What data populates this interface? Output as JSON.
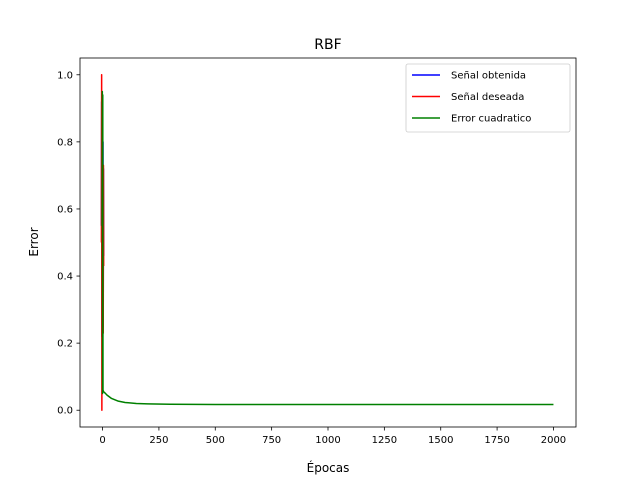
{
  "chart_data": {
    "type": "line",
    "title": "RBF",
    "xlabel": "Épocas",
    "ylabel": "Error",
    "xlim": [
      -100,
      2100
    ],
    "ylim": [
      -0.05,
      1.05
    ],
    "xticks": [
      0,
      250,
      500,
      750,
      1000,
      1250,
      1500,
      1750,
      2000
    ],
    "yticks": [
      0.0,
      0.2,
      0.4,
      0.6,
      0.8,
      1.0
    ],
    "xtick_labels": [
      "0",
      "250",
      "500",
      "750",
      "1000",
      "1250",
      "1500",
      "1750",
      "2000"
    ],
    "ytick_labels": [
      "0.0",
      "0.2",
      "0.4",
      "0.6",
      "0.8",
      "1.0"
    ],
    "grid": false,
    "legend_position": "top-right",
    "series": [
      {
        "name": "Señal obtenida",
        "color": "#0000ff",
        "x": [
          -5,
          -4,
          -3,
          -2,
          -1,
          0,
          1,
          2,
          3,
          4,
          5
        ],
        "y": [
          0.55,
          0.92,
          0.22,
          0.78,
          0.35,
          0.68,
          0.44,
          0.8,
          0.25,
          0.72,
          0.46
        ]
      },
      {
        "name": "Señal deseada",
        "color": "#ff0000",
        "x": [
          -5,
          -4,
          -3,
          -2,
          -1,
          0,
          1,
          2,
          3,
          4,
          5
        ],
        "y": [
          0.5,
          1.0,
          0.0,
          0.8,
          0.3,
          0.75,
          0.5,
          0.7,
          0.23,
          0.73,
          0.43
        ]
      },
      {
        "name": "Error cuadratico",
        "color": "#008000",
        "x": [
          -2,
          -1,
          0,
          1,
          2,
          5,
          10,
          20,
          40,
          70,
          100,
          150,
          200,
          300,
          500,
          750,
          1000,
          1500,
          2000
        ],
        "y": [
          0.55,
          0.95,
          0.05,
          0.94,
          0.06,
          0.055,
          0.052,
          0.045,
          0.035,
          0.027,
          0.023,
          0.02,
          0.019,
          0.018,
          0.017,
          0.017,
          0.017,
          0.017,
          0.017
        ]
      }
    ]
  }
}
